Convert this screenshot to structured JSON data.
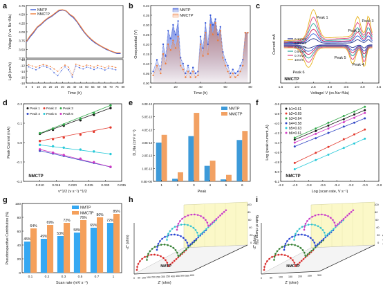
{
  "colors": {
    "blue": "#3b5bd8",
    "orange": "#ee7d3d",
    "bar_blue": "#3d9ad9",
    "bar_orange": "#f2a163",
    "g_blue": "#35a8f2",
    "g_orange": "#f5a05b"
  },
  "panels": [
    {
      "id": "a",
      "letter": "a"
    },
    {
      "id": "b",
      "letter": "b"
    },
    {
      "id": "c",
      "letter": "c"
    },
    {
      "id": "d",
      "letter": "d"
    },
    {
      "id": "e",
      "letter": "e"
    },
    {
      "id": "f",
      "letter": "f"
    },
    {
      "id": "g",
      "letter": "g"
    },
    {
      "id": "h",
      "letter": "h"
    },
    {
      "id": "i",
      "letter": "i"
    }
  ],
  "chart_data": [
    {
      "id": "a",
      "type": "line",
      "top": {
        "ylabel": "Voltage (V vs. Na⁺/Na)",
        "ylim": [
          3.25,
          4.75
        ],
        "yticks": [
          "3.25",
          "3.50",
          "3.75",
          "4.00",
          "4.25",
          "4.50",
          "4.75"
        ],
        "series": [
          {
            "name": "NMTP",
            "color": "#3b5bd8",
            "x": [
              0,
              3,
              6,
              9,
              12,
              15,
              18,
              21,
              24,
              27,
              30,
              33,
              36,
              39,
              42,
              45,
              48,
              51,
              54,
              57,
              60,
              63,
              66,
              69,
              72,
              75,
              78
            ],
            "y": [
              3.7,
              3.85,
              3.97,
              4.12,
              4.2,
              4.3,
              4.38,
              4.44,
              4.52,
              4.6,
              4.62,
              4.59,
              4.48,
              4.4,
              4.28,
              4.12,
              3.98,
              3.86,
              3.76,
              3.68,
              3.62,
              3.56,
              3.5,
              3.46,
              3.42,
              3.38,
              3.38
            ]
          },
          {
            "name": "NMCTP",
            "color": "#ee7d3d",
            "x": [
              0,
              3,
              6,
              9,
              12,
              15,
              18,
              21,
              24,
              27,
              30,
              33,
              36,
              39,
              42,
              45,
              48,
              51,
              54,
              57,
              60,
              63,
              66,
              69,
              72,
              75,
              78
            ],
            "y": [
              3.72,
              3.88,
              4.0,
              4.14,
              4.22,
              4.32,
              4.4,
              4.46,
              4.54,
              4.62,
              4.63,
              4.6,
              4.5,
              4.43,
              4.3,
              4.15,
              4.0,
              3.88,
              3.78,
              3.7,
              3.63,
              3.57,
              3.52,
              3.47,
              3.43,
              3.4,
              3.4
            ]
          }
        ]
      },
      "bottom": {
        "ylabel": "LgD (cm²/s)",
        "ylim": [
          -18,
          -10
        ],
        "yticks": [
          "-10",
          "-12",
          "-14",
          "-16",
          "-18"
        ],
        "xlabel": "Time (h)",
        "xlim": [
          0,
          80
        ],
        "xticks": [
          "0",
          "5",
          "10",
          "15",
          "20",
          "25",
          "30",
          "35",
          "40",
          "45",
          "50",
          "55",
          "60",
          "65",
          "70",
          "75",
          "80"
        ],
        "series": [
          {
            "name": "NMTP",
            "x": [
              2,
              5,
              8,
              11,
              14,
              17,
              20,
              23,
              26,
              29,
              32,
              35,
              38,
              41,
              44,
              47,
              50,
              53,
              56,
              59,
              62,
              65,
              68,
              71,
              74
            ],
            "y": [
              -12.5,
              -13,
              -13.5,
              -12.8,
              -12.2,
              -12.6,
              -13.2,
              -14.5,
              -15.5,
              -13.8,
              -12.5,
              -13.5,
              -16,
              -12.2,
              -12.8,
              -13.2,
              -12.6,
              -12.9,
              -13.4,
              -12.8,
              -13.1,
              -13.6,
              -12.9,
              -13.2,
              -13.5
            ]
          },
          {
            "name": "NMCTP",
            "x": [
              2,
              5,
              8,
              11,
              14,
              17,
              20,
              23,
              26,
              29,
              32,
              35,
              38,
              41,
              44,
              47,
              50,
              53,
              56,
              59,
              62,
              65,
              68,
              71,
              74
            ],
            "y": [
              -11.8,
              -12.2,
              -12.6,
              -12.1,
              -11.7,
              -12,
              -12.4,
              -13.2,
              -14,
              -12.8,
              -11.9,
              -12.6,
              -15.2,
              -11.6,
              -12,
              -12.4,
              -11.9,
              -12.1,
              -12.6,
              -12,
              -12.3,
              -12.8,
              -12.2,
              -12.4,
              -12.7
            ]
          }
        ]
      }
    },
    {
      "id": "b",
      "type": "area",
      "xlabel": "Time (h)",
      "ylabel": "Overpotential (V)",
      "xlim": [
        0,
        80
      ],
      "xticks": [
        "0",
        "20",
        "40",
        "60",
        "80"
      ],
      "ylim": [
        0.0,
        0.4
      ],
      "yticks": [
        "0.00",
        "0.05",
        "0.10",
        "0.15",
        "0.20",
        "0.25",
        "0.30",
        "0.35",
        "0.40"
      ],
      "series": [
        {
          "name": "NMTP",
          "color": "#3b5bd8",
          "x": [
            2,
            5,
            8,
            10,
            12,
            14,
            16,
            18,
            20,
            22,
            24,
            26,
            28,
            30,
            32,
            34,
            36,
            38,
            40,
            42,
            44,
            46,
            48,
            50,
            52,
            54,
            56,
            58,
            60,
            62,
            64,
            66,
            68,
            70,
            72,
            74,
            76,
            78
          ],
          "y": [
            0.06,
            0.12,
            0.07,
            0.2,
            0.14,
            0.27,
            0.23,
            0.3,
            0.25,
            0.32,
            0.13,
            0.1,
            0.05,
            0.09,
            0.05,
            0.08,
            0.05,
            0.06,
            0.24,
            0.18,
            0.31,
            0.2,
            0.35,
            0.3,
            0.33,
            0.25,
            0.29,
            0.16,
            0.12,
            0.09,
            0.05,
            0.07,
            0.05,
            0.06,
            0.09,
            0.12,
            0.26,
            0.26
          ]
        },
        {
          "name": "NMCTP",
          "color": "#ee7d3d",
          "x": [
            2,
            5,
            8,
            10,
            12,
            14,
            16,
            18,
            20,
            22,
            24,
            26,
            28,
            30,
            32,
            34,
            36,
            38,
            40,
            42,
            44,
            46,
            48,
            50,
            52,
            54,
            56,
            58,
            60,
            62,
            64,
            66,
            68,
            70,
            72,
            74,
            76,
            78
          ],
          "y": [
            0.04,
            0.09,
            0.05,
            0.15,
            0.1,
            0.2,
            0.17,
            0.22,
            0.18,
            0.24,
            0.09,
            0.07,
            0.03,
            0.06,
            0.03,
            0.06,
            0.03,
            0.04,
            0.2,
            0.14,
            0.26,
            0.15,
            0.3,
            0.25,
            0.31,
            0.22,
            0.27,
            0.13,
            0.09,
            0.06,
            0.03,
            0.05,
            0.03,
            0.04,
            0.06,
            0.09,
            0.26,
            0.26
          ]
        }
      ]
    },
    {
      "id": "c",
      "type": "line",
      "xlabel": "Voltage/ V (vs.Na⁺/Na)",
      "ylabel": "Current/ mA",
      "xlim": [
        1.5,
        4.5
      ],
      "xticks": [
        "1.5",
        "2.0",
        "2.5",
        "3.0",
        "3.5",
        "4.0",
        "4.5"
      ],
      "ylim": [
        -1.0,
        1.0
      ],
      "annotation": "NMCTP",
      "peaks": [
        "Peak 1",
        "Peak 2",
        "Peak 3",
        "Peak 4",
        "Peak 5",
        "Peak 6"
      ],
      "series": [
        {
          "name": "0.1mV/s",
          "color": "#1f2d8a",
          "scale": 0.15
        },
        {
          "name": "0.2mV/s",
          "color": "#2c5bd8",
          "scale": 0.28
        },
        {
          "name": "0.3mV/s",
          "color": "#d11d5b",
          "scale": 0.4
        },
        {
          "name": "0.5mV/s",
          "color": "#26a69a",
          "scale": 0.55
        },
        {
          "name": "0.7mV/s",
          "color": "#e0417e",
          "scale": 0.72
        },
        {
          "name": "1mV/s",
          "color": "#e7b21b",
          "scale": 0.92
        }
      ]
    },
    {
      "id": "d",
      "type": "scatter",
      "xlabel": "v^1/2 (v s⁻¹) ^1/2",
      "ylabel": "Peak Current (mA)",
      "xlim": [
        0.005,
        0.035
      ],
      "xticks": [
        "0.010",
        "0.015",
        "0.020",
        "0.025",
        "0.030",
        "0.035"
      ],
      "ylim": [
        -0.2,
        0.2
      ],
      "yticks": [
        "-0.2",
        "-0.1",
        "0.0",
        "0.1",
        "0.2"
      ],
      "annotation": "NMCTP",
      "x": [
        0.01,
        0.014,
        0.0173,
        0.0224,
        0.0265,
        0.0316
      ],
      "series": [
        {
          "name": "Peak 1",
          "color": "#151515",
          "y": [
            0.045,
            0.066,
            0.087,
            0.115,
            0.143,
            0.178
          ]
        },
        {
          "name": "Peak 2",
          "color": "#e33a2e",
          "y": [
            0.008,
            0.018,
            0.026,
            0.041,
            0.056,
            0.078
          ]
        },
        {
          "name": "Peak 3",
          "color": "#33a84a",
          "y": [
            0.048,
            0.072,
            0.093,
            0.123,
            0.152,
            0.192
          ]
        },
        {
          "name": "Peak 4",
          "color": "#3146c4",
          "y": [
            -0.042,
            -0.056,
            -0.068,
            -0.085,
            -0.104,
            -0.126
          ]
        },
        {
          "name": "Peak 5",
          "color": "#27c9d8",
          "y": [
            -0.012,
            -0.019,
            -0.026,
            -0.036,
            -0.046,
            -0.059
          ]
        },
        {
          "name": "Peak 6",
          "color": "#d13bc4",
          "y": [
            -0.035,
            -0.052,
            -0.064,
            -0.083,
            -0.101,
            -0.125
          ]
        }
      ]
    },
    {
      "id": "e",
      "type": "bar",
      "xlabel": "Peak",
      "ylabel": "D_Na (cm² s⁻¹)",
      "categories": [
        "1",
        "2",
        "3",
        "4",
        "5",
        "6"
      ],
      "ylim": [
        0,
        6e-13
      ],
      "yticks": [
        "0.0E+00",
        "1.0E-13",
        "2.0E-13",
        "3.0E-13",
        "4.0E-13",
        "5.0E-13",
        "6.0E-13"
      ],
      "series": [
        {
          "name": "NMTP",
          "color": "#3d9ad9",
          "values": [
            3e-13,
            2e-14,
            3.5e-13,
            1.2e-13,
            1.5e-14,
            3.2e-13
          ]
        },
        {
          "name": "NMCTP",
          "color": "#f2a163",
          "values": [
            3.6e-13,
            7e-14,
            5.3e-13,
            1.6e-13,
            5e-14,
            3.9e-13
          ]
        }
      ]
    },
    {
      "id": "f",
      "type": "scatter",
      "xlabel": "Log (scan rate, V s⁻¹)",
      "ylabel": "Log (peak current, A)",
      "xlim": [
        -4.2,
        -2.8
      ],
      "xticks": [
        "-4.2",
        "-4.0",
        "-3.8",
        "-3.6",
        "-3.4",
        "-3.2",
        "-3.0",
        "-2.8"
      ],
      "ylim": [
        -5.2,
        -3.6
      ],
      "yticks": [
        "-3.6",
        "-3.8",
        "-4.0",
        "-4.2",
        "-4.4",
        "-4.6",
        "-4.8",
        "-5.0",
        "-5.2"
      ],
      "annotation": "NMCTP",
      "x": [
        -4.0,
        -3.7,
        -3.52,
        -3.3,
        -3.15,
        -3.0
      ],
      "series": [
        {
          "name": "b1=0.61",
          "color": "#151515",
          "y": [
            -4.34,
            -4.16,
            -4.05,
            -3.92,
            -3.82,
            -3.73
          ]
        },
        {
          "name": "b2=0.69",
          "color": "#e33a2e",
          "y": [
            -4.82,
            -4.61,
            -4.49,
            -4.33,
            -4.23,
            -4.13
          ]
        },
        {
          "name": "b3=0.64",
          "color": "#33a84a",
          "y": [
            -4.3,
            -4.11,
            -3.99,
            -3.85,
            -3.76,
            -3.66
          ]
        },
        {
          "name": "b4=0.58",
          "color": "#3146c4",
          "y": [
            -4.48,
            -4.31,
            -4.2,
            -4.07,
            -3.99,
            -3.9
          ]
        },
        {
          "name": "b5=0.63",
          "color": "#27c9d8",
          "y": [
            -4.95,
            -4.76,
            -4.65,
            -4.51,
            -4.42,
            -4.32
          ]
        },
        {
          "name": "b6=0.61",
          "color": "#d13bc4",
          "y": [
            -4.4,
            -4.22,
            -4.11,
            -3.98,
            -3.89,
            -3.79
          ]
        }
      ]
    },
    {
      "id": "g",
      "type": "bar",
      "xlabel": "Scan rate (mV s⁻¹)",
      "ylabel": "Pseudocapacitive Contribution (%)",
      "categories": [
        "0.1",
        "0.2",
        "0.3",
        "0.5",
        "0.7",
        "1"
      ],
      "ylim": [
        0,
        100
      ],
      "yticks": [
        "0",
        "20",
        "40",
        "60",
        "80",
        "100"
      ],
      "series": [
        {
          "name": "NMTP",
          "color": "#35a8f2",
          "values": [
            45,
            49,
            53,
            58,
            65,
            72
          ],
          "labels": [
            "45%",
            "49%",
            "53%",
            "58%",
            "65%",
            "72%"
          ]
        },
        {
          "name": "NMCTP",
          "color": "#f5a05b",
          "values": [
            64,
            69,
            72,
            76,
            80,
            85
          ],
          "labels": [
            "64%",
            "69%",
            "72%",
            "76%",
            "80%",
            "85%"
          ]
        }
      ]
    },
    {
      "id": "h",
      "type": "line",
      "xlabel": "Z' (ohm)",
      "ylabel": "-Z'' (ohm)",
      "zlabel": "State of charge (%)",
      "annotation": "NMTP",
      "xticks": [
        "0",
        "50",
        "100",
        "150",
        "200",
        "250",
        "300",
        "350",
        "400",
        "450",
        "500",
        "550",
        "600"
      ],
      "zticks": [
        "0",
        "20",
        "40",
        "60",
        "80",
        "100"
      ]
    },
    {
      "id": "i",
      "type": "line",
      "xlabel": "Z' (ohm)",
      "ylabel": "-Z'' (ohm)",
      "zlabel": "State of charge (%)",
      "annotation": "NMCTP",
      "xticks": [
        "0",
        "50",
        "100",
        "150",
        "200",
        "250",
        "300"
      ],
      "zticks": [
        "0",
        "20",
        "40",
        "60",
        "80",
        "100"
      ]
    }
  ]
}
